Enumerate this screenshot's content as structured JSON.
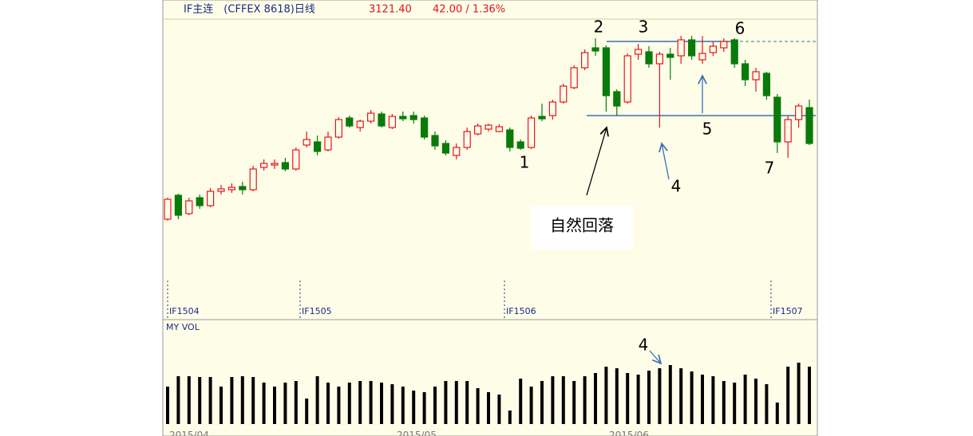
{
  "header": {
    "title": "IF主连　(CFFEX 8618)日线",
    "price": "3121.40",
    "change": "42.00 / 1.36%"
  },
  "chart_data": [
    {
      "type": "candlestick",
      "up_color": "#e8141c",
      "down_color": "#0a7a0a",
      "ylim": [
        2240,
        3760
      ],
      "open": [
        2740,
        2860,
        2768,
        2848,
        2808,
        2880,
        2888,
        2904,
        2888,
        3000,
        3012,
        3024,
        2992,
        3112,
        3128,
        3088,
        3152,
        3248,
        3200,
        3232,
        3268,
        3200,
        3256,
        3260,
        3248,
        3160,
        3120,
        3060,
        3100,
        3168,
        3192,
        3180,
        3188,
        3128,
        3100,
        3256,
        3260,
        3328,
        3400,
        3500,
        3600,
        3600,
        3380,
        3328,
        3568,
        3580,
        3520,
        3568,
        3560,
        3640,
        3540,
        3576,
        3600,
        3640,
        3520,
        3440,
        3472,
        3352,
        3128,
        3240,
        3300
      ],
      "high": [
        2848,
        2868,
        2848,
        2864,
        2896,
        2912,
        2920,
        2928,
        3008,
        3040,
        3040,
        3048,
        3100,
        3180,
        3160,
        3180,
        3252,
        3260,
        3240,
        3288,
        3280,
        3268,
        3280,
        3280,
        3260,
        3180,
        3136,
        3120,
        3200,
        3220,
        3220,
        3216,
        3200,
        3140,
        3260,
        3320,
        3340,
        3420,
        3512,
        3592,
        3648,
        3612,
        3392,
        3572,
        3620,
        3608,
        3580,
        3600,
        3660,
        3660,
        3660,
        3632,
        3648,
        3648,
        3540,
        3500,
        3480,
        3368,
        3260,
        3320,
        3340
      ],
      "low": [
        2732,
        2740,
        2760,
        2792,
        2800,
        2864,
        2872,
        2864,
        2880,
        2984,
        2992,
        2980,
        2984,
        3100,
        3060,
        3080,
        3144,
        3200,
        3180,
        3220,
        3200,
        3192,
        3232,
        3220,
        3140,
        3088,
        3060,
        3040,
        3088,
        3160,
        3180,
        3176,
        3080,
        3088,
        3092,
        3232,
        3240,
        3320,
        3392,
        3488,
        3560,
        3280,
        3260,
        3320,
        3540,
        3500,
        3200,
        3440,
        3520,
        3540,
        3520,
        3560,
        3580,
        3500,
        3408,
        3380,
        3340,
        3072,
        3048,
        3200,
        3112
      ],
      "close": [
        2840,
        2760,
        2832,
        2808,
        2880,
        2892,
        2900,
        2888,
        2992,
        3020,
        3020,
        2992,
        3088,
        3140,
        3080,
        3152,
        3240,
        3208,
        3232,
        3272,
        3208,
        3256,
        3244,
        3240,
        3152,
        3108,
        3072,
        3100,
        3180,
        3208,
        3212,
        3204,
        3100,
        3096,
        3248,
        3244,
        3328,
        3408,
        3500,
        3576,
        3584,
        3360,
        3308,
        3560,
        3592,
        3520,
        3568,
        3552,
        3640,
        3560,
        3572,
        3608,
        3632,
        3520,
        3440,
        3480,
        3360,
        3128,
        3240,
        3308,
        3120
      ],
      "period_labels": [
        "IF1504",
        "IF1505",
        "IF1506",
        "IF1507"
      ],
      "annotations": [
        "1",
        "2",
        "3",
        "4",
        "5",
        "6",
        "7",
        "自然回落"
      ]
    },
    {
      "type": "bar",
      "title": "MY VOL",
      "color": "#000000",
      "ylim": [
        0,
        110
      ],
      "values": [
        47,
        60,
        60,
        59,
        59,
        47,
        59,
        60,
        59,
        52,
        47,
        52,
        54,
        32,
        60,
        52,
        47,
        52,
        54,
        54,
        52,
        50,
        47,
        42,
        40,
        47,
        54,
        54,
        54,
        45,
        40,
        37,
        17,
        57,
        47,
        54,
        60,
        60,
        54,
        60,
        64,
        72,
        70,
        64,
        62,
        67,
        70,
        74,
        70,
        66,
        62,
        60,
        54,
        52,
        62,
        57,
        50,
        27,
        72,
        77,
        72
      ],
      "date_labels": [
        "2015/04",
        "2015/05",
        "2015/06"
      ],
      "annotations": [
        "4"
      ]
    }
  ]
}
